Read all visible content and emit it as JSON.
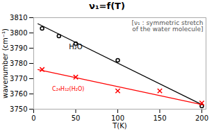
{
  "chart_data": {
    "type": "line",
    "title": "ν₁=f(T)",
    "subtitle": [
      "[ν₁ : symmetric stretch",
      "of the water molecule]"
    ],
    "xlabel": "T(K)",
    "ylabel": "wavenumber (cm⁻¹)",
    "xlim": [
      0,
      205
    ],
    "xticks": [
      0,
      50,
      100,
      150,
      200
    ],
    "ylim": [
      3750,
      3810
    ],
    "yticks": [
      3750,
      3760,
      3770,
      3780,
      3790,
      3800,
      3810
    ],
    "series": [
      {
        "name": "H₂O",
        "color": "black",
        "marker": "circle",
        "x": [
          10,
          30,
          50,
          100,
          200
        ],
        "values": [
          3803,
          3798,
          3793,
          3782,
          3752
        ],
        "fit_x": [
          5,
          200
        ],
        "fit_values": [
          3806,
          3753
        ],
        "label_position": [
          42,
          3791
        ]
      },
      {
        "name": "C₂₄H₁₂(H₂O)",
        "color": "red",
        "marker": "x",
        "x": [
          10,
          50,
          100,
          150,
          200
        ],
        "values": [
          3776,
          3771,
          3762,
          3762,
          3754
        ],
        "fit_x": [
          5,
          200
        ],
        "fit_values": [
          3776,
          3753
        ],
        "label_position": [
          22,
          3763
        ]
      }
    ]
  }
}
